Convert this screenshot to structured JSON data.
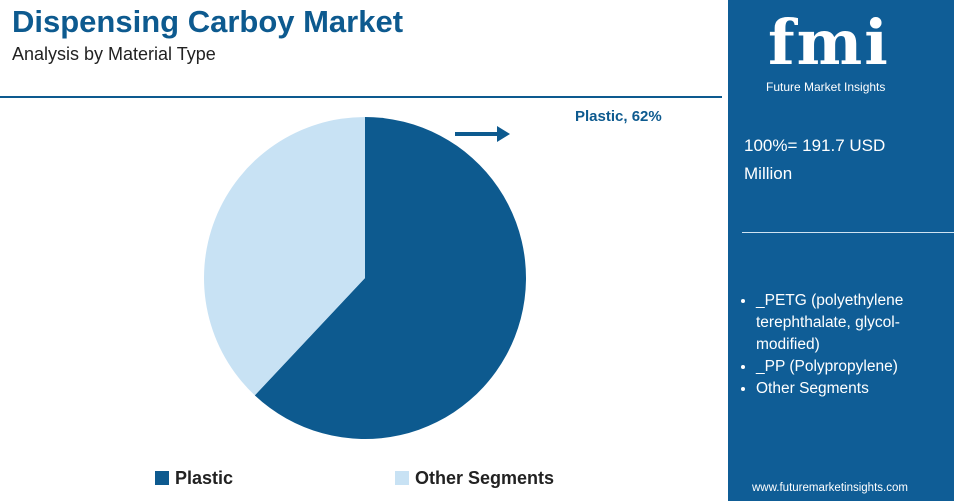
{
  "header": {
    "title": "Dispensing Carboy Market",
    "subtitle": "Analysis by Material Type"
  },
  "chart_data": {
    "type": "pie",
    "categories": [
      "Plastic",
      "Other Segments"
    ],
    "values": [
      62,
      38
    ],
    "value_labels": [
      "Plastic, 62%",
      null
    ],
    "colors": [
      "#0d5a8f",
      "#c8e2f4"
    ],
    "legend": "bottom"
  },
  "sidebar": {
    "logo": "fmi",
    "brand": "Future Market Insights",
    "total": "100%= 191.7 USD Million",
    "segments": [
      "_PETG (polyethylene terephthalate, glycol-modified)",
      "_PP (Polypropylene)",
      "Other Segments"
    ],
    "website": "www.futuremarketinsights.com"
  }
}
